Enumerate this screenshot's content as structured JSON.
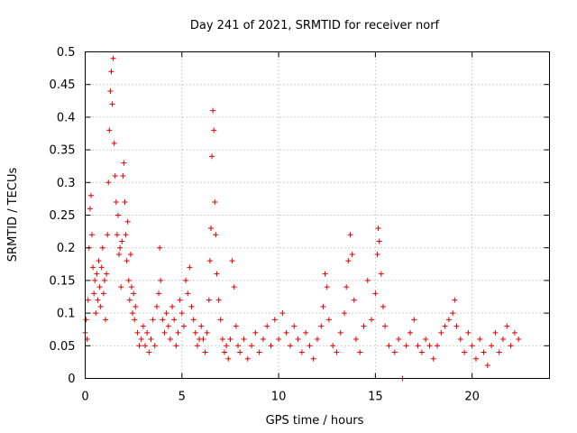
{
  "chart_data": {
    "type": "scatter",
    "title": "Day 241 of 2021, SRMTID for receiver norf",
    "xlabel": "GPS time / hours",
    "ylabel": "SRMTID / TECUs",
    "xlim": [
      0,
      24
    ],
    "ylim": [
      0,
      0.5
    ],
    "x_ticks": [
      0,
      5,
      10,
      15,
      20
    ],
    "x_tick_labels": [
      "0",
      "5",
      "10",
      "15",
      "20"
    ],
    "y_ticks": [
      0,
      0.05,
      0.1,
      0.15,
      0.2,
      0.25,
      0.3,
      0.35,
      0.4,
      0.45,
      0.5
    ],
    "y_tick_labels": [
      "0",
      "0.05",
      "0.1",
      "0.15",
      "0.2",
      "0.25",
      "0.3",
      "0.35",
      "0.4",
      "0.45",
      "0.5"
    ],
    "grid": true,
    "marker": "plus",
    "color": "#e00000",
    "series": [
      {
        "name": "SRMTID",
        "points": [
          [
            0.0,
            0.07
          ],
          [
            0.05,
            0.09
          ],
          [
            0.1,
            0.06
          ],
          [
            0.15,
            0.12
          ],
          [
            0.2,
            0.2
          ],
          [
            0.25,
            0.26
          ],
          [
            0.3,
            0.28
          ],
          [
            0.35,
            0.22
          ],
          [
            0.4,
            0.17
          ],
          [
            0.45,
            0.13
          ],
          [
            0.5,
            0.15
          ],
          [
            0.55,
            0.1
          ],
          [
            0.6,
            0.16
          ],
          [
            0.65,
            0.12
          ],
          [
            0.7,
            0.18
          ],
          [
            0.75,
            0.14
          ],
          [
            0.8,
            0.11
          ],
          [
            0.85,
            0.17
          ],
          [
            0.9,
            0.2
          ],
          [
            0.95,
            0.13
          ],
          [
            1.0,
            0.15
          ],
          [
            1.05,
            0.09
          ],
          [
            1.1,
            0.16
          ],
          [
            1.15,
            0.22
          ],
          [
            1.2,
            0.3
          ],
          [
            1.25,
            0.38
          ],
          [
            1.3,
            0.44
          ],
          [
            1.35,
            0.47
          ],
          [
            1.4,
            0.42
          ],
          [
            1.45,
            0.49
          ],
          [
            1.5,
            0.36
          ],
          [
            1.55,
            0.31
          ],
          [
            1.6,
            0.27
          ],
          [
            1.65,
            0.22
          ],
          [
            1.7,
            0.25
          ],
          [
            1.75,
            0.19
          ],
          [
            1.8,
            0.2
          ],
          [
            1.85,
            0.14
          ],
          [
            1.9,
            0.21
          ],
          [
            1.95,
            0.31
          ],
          [
            2.0,
            0.33
          ],
          [
            2.05,
            0.27
          ],
          [
            2.1,
            0.22
          ],
          [
            2.15,
            0.18
          ],
          [
            2.2,
            0.24
          ],
          [
            2.25,
            0.15
          ],
          [
            2.3,
            0.12
          ],
          [
            2.35,
            0.19
          ],
          [
            2.4,
            0.14
          ],
          [
            2.45,
            0.1
          ],
          [
            2.5,
            0.13
          ],
          [
            2.55,
            0.09
          ],
          [
            2.6,
            0.11
          ],
          [
            2.7,
            0.07
          ],
          [
            2.8,
            0.05
          ],
          [
            2.9,
            0.06
          ],
          [
            3.0,
            0.08
          ],
          [
            3.1,
            0.05
          ],
          [
            3.2,
            0.07
          ],
          [
            3.3,
            0.04
          ],
          [
            3.4,
            0.06
          ],
          [
            3.5,
            0.09
          ],
          [
            3.6,
            0.05
          ],
          [
            3.7,
            0.11
          ],
          [
            3.8,
            0.13
          ],
          [
            3.85,
            0.2
          ],
          [
            3.9,
            0.15
          ],
          [
            4.0,
            0.09
          ],
          [
            4.1,
            0.07
          ],
          [
            4.2,
            0.1
          ],
          [
            4.3,
            0.08
          ],
          [
            4.4,
            0.06
          ],
          [
            4.5,
            0.11
          ],
          [
            4.6,
            0.09
          ],
          [
            4.7,
            0.05
          ],
          [
            4.8,
            0.07
          ],
          [
            4.9,
            0.12
          ],
          [
            5.0,
            0.1
          ],
          [
            5.1,
            0.08
          ],
          [
            5.2,
            0.15
          ],
          [
            5.3,
            0.13
          ],
          [
            5.4,
            0.17
          ],
          [
            5.5,
            0.11
          ],
          [
            5.6,
            0.09
          ],
          [
            5.7,
            0.07
          ],
          [
            5.8,
            0.05
          ],
          [
            5.9,
            0.06
          ],
          [
            6.0,
            0.08
          ],
          [
            6.1,
            0.06
          ],
          [
            6.2,
            0.04
          ],
          [
            6.3,
            0.07
          ],
          [
            6.4,
            0.12
          ],
          [
            6.45,
            0.18
          ],
          [
            6.5,
            0.23
          ],
          [
            6.55,
            0.34
          ],
          [
            6.6,
            0.41
          ],
          [
            6.65,
            0.38
          ],
          [
            6.7,
            0.27
          ],
          [
            6.75,
            0.22
          ],
          [
            6.8,
            0.16
          ],
          [
            6.9,
            0.12
          ],
          [
            7.0,
            0.09
          ],
          [
            7.1,
            0.06
          ],
          [
            7.2,
            0.04
          ],
          [
            7.3,
            0.05
          ],
          [
            7.4,
            0.03
          ],
          [
            7.5,
            0.06
          ],
          [
            7.6,
            0.18
          ],
          [
            7.7,
            0.14
          ],
          [
            7.8,
            0.08
          ],
          [
            7.9,
            0.05
          ],
          [
            8.0,
            0.04
          ],
          [
            8.2,
            0.06
          ],
          [
            8.4,
            0.03
          ],
          [
            8.6,
            0.05
          ],
          [
            8.8,
            0.07
          ],
          [
            9.0,
            0.04
          ],
          [
            9.2,
            0.06
          ],
          [
            9.4,
            0.08
          ],
          [
            9.6,
            0.05
          ],
          [
            9.8,
            0.09
          ],
          [
            10.0,
            0.06
          ],
          [
            10.2,
            0.1
          ],
          [
            10.4,
            0.07
          ],
          [
            10.6,
            0.05
          ],
          [
            10.8,
            0.08
          ],
          [
            11.0,
            0.06
          ],
          [
            11.2,
            0.04
          ],
          [
            11.4,
            0.07
          ],
          [
            11.6,
            0.05
          ],
          [
            11.8,
            0.03
          ],
          [
            12.0,
            0.06
          ],
          [
            12.2,
            0.08
          ],
          [
            12.3,
            0.11
          ],
          [
            12.4,
            0.16
          ],
          [
            12.5,
            0.14
          ],
          [
            12.6,
            0.09
          ],
          [
            12.8,
            0.05
          ],
          [
            13.0,
            0.04
          ],
          [
            13.2,
            0.07
          ],
          [
            13.4,
            0.1
          ],
          [
            13.5,
            0.14
          ],
          [
            13.6,
            0.18
          ],
          [
            13.7,
            0.22
          ],
          [
            13.8,
            0.19
          ],
          [
            13.9,
            0.12
          ],
          [
            14.0,
            0.06
          ],
          [
            14.2,
            0.04
          ],
          [
            14.4,
            0.08
          ],
          [
            14.6,
            0.15
          ],
          [
            14.8,
            0.09
          ],
          [
            15.0,
            0.13
          ],
          [
            15.1,
            0.19
          ],
          [
            15.15,
            0.23
          ],
          [
            15.2,
            0.21
          ],
          [
            15.3,
            0.16
          ],
          [
            15.4,
            0.11
          ],
          [
            15.5,
            0.08
          ],
          [
            15.7,
            0.05
          ],
          [
            16.0,
            0.04
          ],
          [
            16.2,
            0.06
          ],
          [
            16.4,
            0.0
          ],
          [
            16.6,
            0.05
          ],
          [
            16.8,
            0.07
          ],
          [
            17.0,
            0.09
          ],
          [
            17.2,
            0.05
          ],
          [
            17.4,
            0.04
          ],
          [
            17.6,
            0.06
          ],
          [
            17.8,
            0.05
          ],
          [
            18.0,
            0.03
          ],
          [
            18.2,
            0.05
          ],
          [
            18.4,
            0.07
          ],
          [
            18.6,
            0.08
          ],
          [
            18.8,
            0.09
          ],
          [
            19.0,
            0.1
          ],
          [
            19.1,
            0.12
          ],
          [
            19.2,
            0.08
          ],
          [
            19.4,
            0.06
          ],
          [
            19.6,
            0.04
          ],
          [
            19.8,
            0.07
          ],
          [
            20.0,
            0.05
          ],
          [
            20.2,
            0.03
          ],
          [
            20.4,
            0.06
          ],
          [
            20.6,
            0.04
          ],
          [
            20.8,
            0.02
          ],
          [
            21.0,
            0.05
          ],
          [
            21.2,
            0.07
          ],
          [
            21.4,
            0.04
          ],
          [
            21.6,
            0.06
          ],
          [
            21.8,
            0.08
          ],
          [
            22.0,
            0.05
          ],
          [
            22.2,
            0.07
          ],
          [
            22.4,
            0.06
          ]
        ]
      }
    ]
  }
}
